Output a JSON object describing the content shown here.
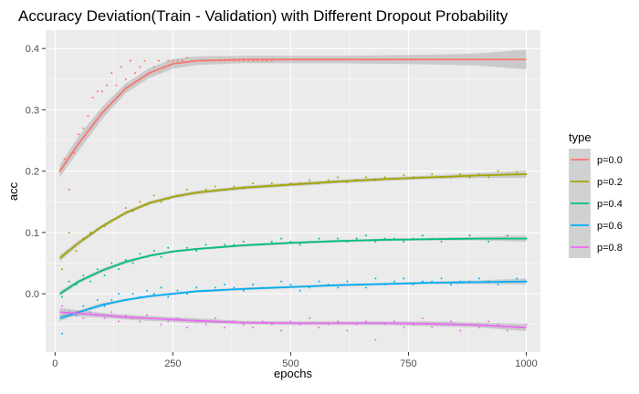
{
  "chart_data": {
    "type": "scatter",
    "title": "Accuracy Deviation(Train - Validation) with Different Dropout Probability",
    "xlabel": "epochs",
    "ylabel": "acc",
    "xlim": [
      -20,
      1030
    ],
    "ylim": [
      -0.095,
      0.43
    ],
    "x_ticks": [
      0,
      250,
      500,
      750,
      1000
    ],
    "x_tick_labels": [
      "0",
      "250",
      "500",
      "750",
      "1000"
    ],
    "y_ticks": [
      0.0,
      0.1,
      0.2,
      0.3,
      0.4
    ],
    "y_tick_labels": [
      "0.0",
      "0.1",
      "0.2",
      "0.3",
      "0.4"
    ],
    "grid": true,
    "legend": {
      "title": "type",
      "position": "right"
    },
    "series": [
      {
        "name": "p=0.0",
        "color": "#F8766D",
        "smooth_x": [
          10,
          50,
          100,
          150,
          200,
          250,
          300,
          400,
          500,
          600,
          700,
          800,
          900,
          1000
        ],
        "smooth_y": [
          0.2,
          0.245,
          0.295,
          0.335,
          0.36,
          0.375,
          0.38,
          0.382,
          0.382,
          0.382,
          0.382,
          0.382,
          0.382,
          0.382
        ],
        "band": [
          0.01,
          0.012,
          0.01,
          0.008,
          0.008,
          0.008,
          0.007,
          0.006,
          0.006,
          0.006,
          0.007,
          0.008,
          0.01,
          0.016
        ],
        "points_x": [
          10,
          20,
          30,
          40,
          50,
          60,
          70,
          80,
          90,
          100,
          110,
          120,
          130,
          140,
          150,
          160,
          170,
          180,
          190,
          200,
          210,
          220,
          230,
          240,
          250,
          260,
          270,
          280,
          290,
          300,
          310,
          320,
          330,
          340,
          350,
          360,
          370,
          380,
          390,
          400,
          410,
          420,
          430,
          440,
          450,
          460
        ],
        "points_y": [
          0.2,
          0.22,
          0.17,
          0.23,
          0.26,
          0.27,
          0.29,
          0.32,
          0.33,
          0.33,
          0.34,
          0.36,
          0.34,
          0.37,
          0.35,
          0.38,
          0.36,
          0.37,
          0.38,
          0.36,
          0.37,
          0.38,
          0.37,
          0.38,
          0.38,
          0.38,
          0.38,
          0.385,
          0.38,
          0.38,
          0.38,
          0.38,
          0.38,
          0.38,
          0.38,
          0.38,
          0.38,
          0.38,
          0.38,
          0.38,
          0.38,
          0.38,
          0.38,
          0.38,
          0.38,
          0.38
        ]
      },
      {
        "name": "p=0.2",
        "color": "#A3A500",
        "smooth_x": [
          10,
          50,
          100,
          150,
          200,
          250,
          300,
          400,
          500,
          600,
          700,
          800,
          900,
          1000
        ],
        "smooth_y": [
          0.058,
          0.083,
          0.11,
          0.132,
          0.148,
          0.158,
          0.165,
          0.173,
          0.178,
          0.183,
          0.187,
          0.19,
          0.193,
          0.195
        ],
        "band": [
          0.005,
          0.004,
          0.003,
          0.003,
          0.003,
          0.003,
          0.003,
          0.003,
          0.003,
          0.003,
          0.003,
          0.003,
          0.004,
          0.006
        ],
        "points_x": [
          15,
          30,
          45,
          60,
          75,
          90,
          105,
          120,
          135,
          150,
          165,
          180,
          195,
          210,
          225,
          240,
          260,
          280,
          300,
          320,
          340,
          360,
          380,
          400,
          420,
          440,
          460,
          480,
          500,
          520,
          540,
          560,
          580,
          600,
          620,
          640,
          660,
          680,
          700,
          720,
          740,
          760,
          780,
          800,
          820,
          840,
          860,
          880,
          900,
          920,
          940,
          960,
          980,
          1000
        ],
        "points_y": [
          0.04,
          0.1,
          0.07,
          0.09,
          0.1,
          0.105,
          0.11,
          0.12,
          0.125,
          0.14,
          0.135,
          0.15,
          0.145,
          0.16,
          0.15,
          0.155,
          0.16,
          0.17,
          0.165,
          0.17,
          0.175,
          0.17,
          0.175,
          0.172,
          0.18,
          0.175,
          0.18,
          0.178,
          0.18,
          0.18,
          0.185,
          0.18,
          0.185,
          0.19,
          0.182,
          0.186,
          0.19,
          0.185,
          0.19,
          0.188,
          0.193,
          0.19,
          0.19,
          0.195,
          0.19,
          0.19,
          0.195,
          0.19,
          0.195,
          0.19,
          0.2,
          0.195,
          0.198,
          0.195
        ]
      },
      {
        "name": "p=0.4",
        "color": "#00BF7D",
        "smooth_x": [
          10,
          50,
          100,
          150,
          200,
          250,
          300,
          400,
          500,
          600,
          700,
          800,
          900,
          1000
        ],
        "smooth_y": [
          0.0,
          0.02,
          0.038,
          0.052,
          0.062,
          0.069,
          0.073,
          0.079,
          0.083,
          0.086,
          0.088,
          0.089,
          0.09,
          0.09
        ],
        "band": [
          0.004,
          0.003,
          0.003,
          0.003,
          0.002,
          0.002,
          0.002,
          0.002,
          0.002,
          0.002,
          0.002,
          0.002,
          0.003,
          0.005
        ],
        "points_x": [
          15,
          30,
          45,
          60,
          75,
          90,
          105,
          120,
          135,
          150,
          165,
          180,
          195,
          210,
          225,
          240,
          260,
          280,
          300,
          320,
          340,
          360,
          380,
          400,
          420,
          440,
          460,
          480,
          500,
          520,
          540,
          560,
          580,
          600,
          620,
          640,
          660,
          680,
          700,
          720,
          740,
          760,
          780,
          800,
          820,
          840,
          860,
          880,
          900,
          920,
          940,
          960,
          980,
          1000
        ],
        "points_y": [
          -0.005,
          0.02,
          0.015,
          0.03,
          0.02,
          0.04,
          0.03,
          0.05,
          0.04,
          0.055,
          0.05,
          0.065,
          0.06,
          0.07,
          0.06,
          0.075,
          0.07,
          0.075,
          0.07,
          0.08,
          0.075,
          0.08,
          0.08,
          0.085,
          0.08,
          0.08,
          0.085,
          0.09,
          0.085,
          0.08,
          0.085,
          0.09,
          0.085,
          0.09,
          0.085,
          0.09,
          0.095,
          0.085,
          0.09,
          0.09,
          0.085,
          0.09,
          0.095,
          0.09,
          0.085,
          0.09,
          0.09,
          0.095,
          0.09,
          0.085,
          0.09,
          0.095,
          0.09,
          0.09
        ]
      },
      {
        "name": "p=0.6",
        "color": "#00B0F6",
        "smooth_x": [
          10,
          50,
          100,
          150,
          200,
          250,
          300,
          400,
          500,
          600,
          700,
          800,
          900,
          1000
        ],
        "smooth_y": [
          -0.04,
          -0.03,
          -0.018,
          -0.01,
          -0.004,
          0.0,
          0.004,
          0.008,
          0.011,
          0.014,
          0.016,
          0.018,
          0.019,
          0.02
        ],
        "band": [
          0.005,
          0.003,
          0.003,
          0.002,
          0.002,
          0.002,
          0.002,
          0.002,
          0.002,
          0.002,
          0.002,
          0.002,
          0.003,
          0.005
        ],
        "points_x": [
          15,
          30,
          45,
          60,
          75,
          90,
          105,
          120,
          135,
          150,
          165,
          180,
          195,
          210,
          225,
          240,
          260,
          280,
          300,
          320,
          340,
          360,
          380,
          400,
          420,
          440,
          460,
          480,
          500,
          520,
          540,
          560,
          580,
          600,
          620,
          640,
          660,
          680,
          700,
          720,
          740,
          760,
          780,
          800,
          820,
          840,
          860,
          880,
          900,
          920,
          940,
          960,
          980,
          1000
        ],
        "points_y": [
          -0.065,
          -0.03,
          -0.035,
          -0.02,
          -0.03,
          -0.01,
          -0.02,
          -0.01,
          0.0,
          -0.01,
          0.0,
          -0.005,
          0.005,
          0.0,
          0.01,
          -0.005,
          0.005,
          0.0,
          0.01,
          0.005,
          0.01,
          0.015,
          0.01,
          0.005,
          0.015,
          0.01,
          0.01,
          0.02,
          0.015,
          0.005,
          0.01,
          0.02,
          0.015,
          0.01,
          0.02,
          0.015,
          0.01,
          0.025,
          0.015,
          0.02,
          0.025,
          0.015,
          0.02,
          0.02,
          0.025,
          0.015,
          0.02,
          0.02,
          0.025,
          0.02,
          0.015,
          0.02,
          0.025,
          0.02
        ]
      },
      {
        "name": "p=0.8",
        "color": "#E76BF3",
        "smooth_x": [
          10,
          50,
          100,
          150,
          200,
          250,
          300,
          400,
          500,
          600,
          700,
          800,
          900,
          1000
        ],
        "smooth_y": [
          -0.03,
          -0.032,
          -0.035,
          -0.038,
          -0.04,
          -0.042,
          -0.044,
          -0.047,
          -0.048,
          -0.048,
          -0.048,
          -0.049,
          -0.051,
          -0.055
        ],
        "band": [
          0.007,
          0.005,
          0.004,
          0.004,
          0.004,
          0.004,
          0.004,
          0.003,
          0.003,
          0.003,
          0.003,
          0.004,
          0.004,
          0.006
        ],
        "points_x": [
          15,
          30,
          45,
          60,
          75,
          90,
          105,
          120,
          135,
          150,
          165,
          180,
          195,
          210,
          225,
          240,
          260,
          280,
          300,
          320,
          340,
          360,
          380,
          400,
          420,
          440,
          460,
          480,
          500,
          520,
          540,
          560,
          580,
          600,
          620,
          640,
          660,
          680,
          700,
          720,
          740,
          760,
          780,
          800,
          820,
          840,
          860,
          880,
          900,
          920,
          940,
          960,
          980,
          1000
        ],
        "points_y": [
          -0.02,
          -0.035,
          -0.03,
          -0.04,
          -0.03,
          -0.035,
          -0.04,
          -0.03,
          -0.045,
          -0.035,
          -0.04,
          -0.045,
          -0.035,
          -0.04,
          -0.05,
          -0.045,
          -0.04,
          -0.055,
          -0.045,
          -0.05,
          -0.04,
          -0.055,
          -0.045,
          -0.05,
          -0.055,
          -0.045,
          -0.05,
          -0.06,
          -0.045,
          -0.05,
          -0.04,
          -0.055,
          -0.05,
          -0.045,
          -0.06,
          -0.05,
          -0.045,
          -0.075,
          -0.05,
          -0.045,
          -0.055,
          -0.05,
          -0.04,
          -0.055,
          -0.05,
          -0.045,
          -0.06,
          -0.05,
          -0.055,
          -0.045,
          -0.05,
          -0.06,
          -0.055,
          -0.05
        ]
      }
    ]
  }
}
